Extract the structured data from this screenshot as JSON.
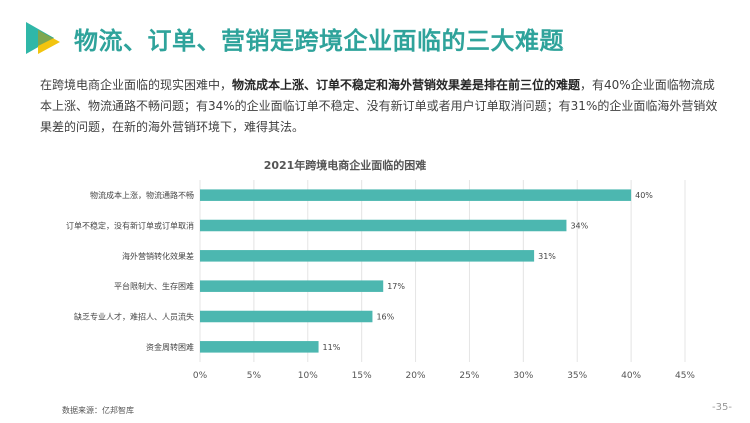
{
  "header": {
    "title": "物流、订单、营销是跨境企业面临的三大难题"
  },
  "intro": {
    "part1": "在跨境电商企业面临的现实困难中，",
    "bold": "物流成本上涨、订单不稳定和海外营销效果差是排在前三位的难题",
    "part2": "，有40%企业面临物流成本上涨、物流通路不畅问题；有34%的企业面临订单不稳定、没有新订单或者用户订单取消问题；有31%的企业面临海外营销效果差的问题，在新的海外营销环境下，难得其法。"
  },
  "chart_data": {
    "type": "bar",
    "orientation": "horizontal",
    "title": "2021年跨境电商企业面临的困难",
    "categories": [
      "物流成本上涨，物流通路不畅",
      "订单不稳定，没有新订单或订单取消",
      "海外营销转化效果差",
      "平台限制大、生存困难",
      "缺乏专业人才，难招人、人员流失",
      "资金周转困难"
    ],
    "values": [
      40,
      34,
      31,
      17,
      16,
      11
    ],
    "value_labels": [
      "40%",
      "34%",
      "31%",
      "17%",
      "16%",
      "11%"
    ],
    "xlim": [
      0,
      45
    ],
    "x_ticks": [
      0,
      5,
      10,
      15,
      20,
      25,
      30,
      35,
      40,
      45
    ],
    "x_tick_labels": [
      "0%",
      "5%",
      "10%",
      "15%",
      "20%",
      "25%",
      "30%",
      "35%",
      "40%",
      "45%"
    ],
    "grid": true,
    "bar_color": "#4cb7b0"
  },
  "footer": {
    "source": "数据来源：亿邦智库",
    "page": "-35-"
  },
  "colors": {
    "title": "#2fa39b",
    "logo_green": "#2fb7a8",
    "logo_yellow": "#f2c40f"
  }
}
